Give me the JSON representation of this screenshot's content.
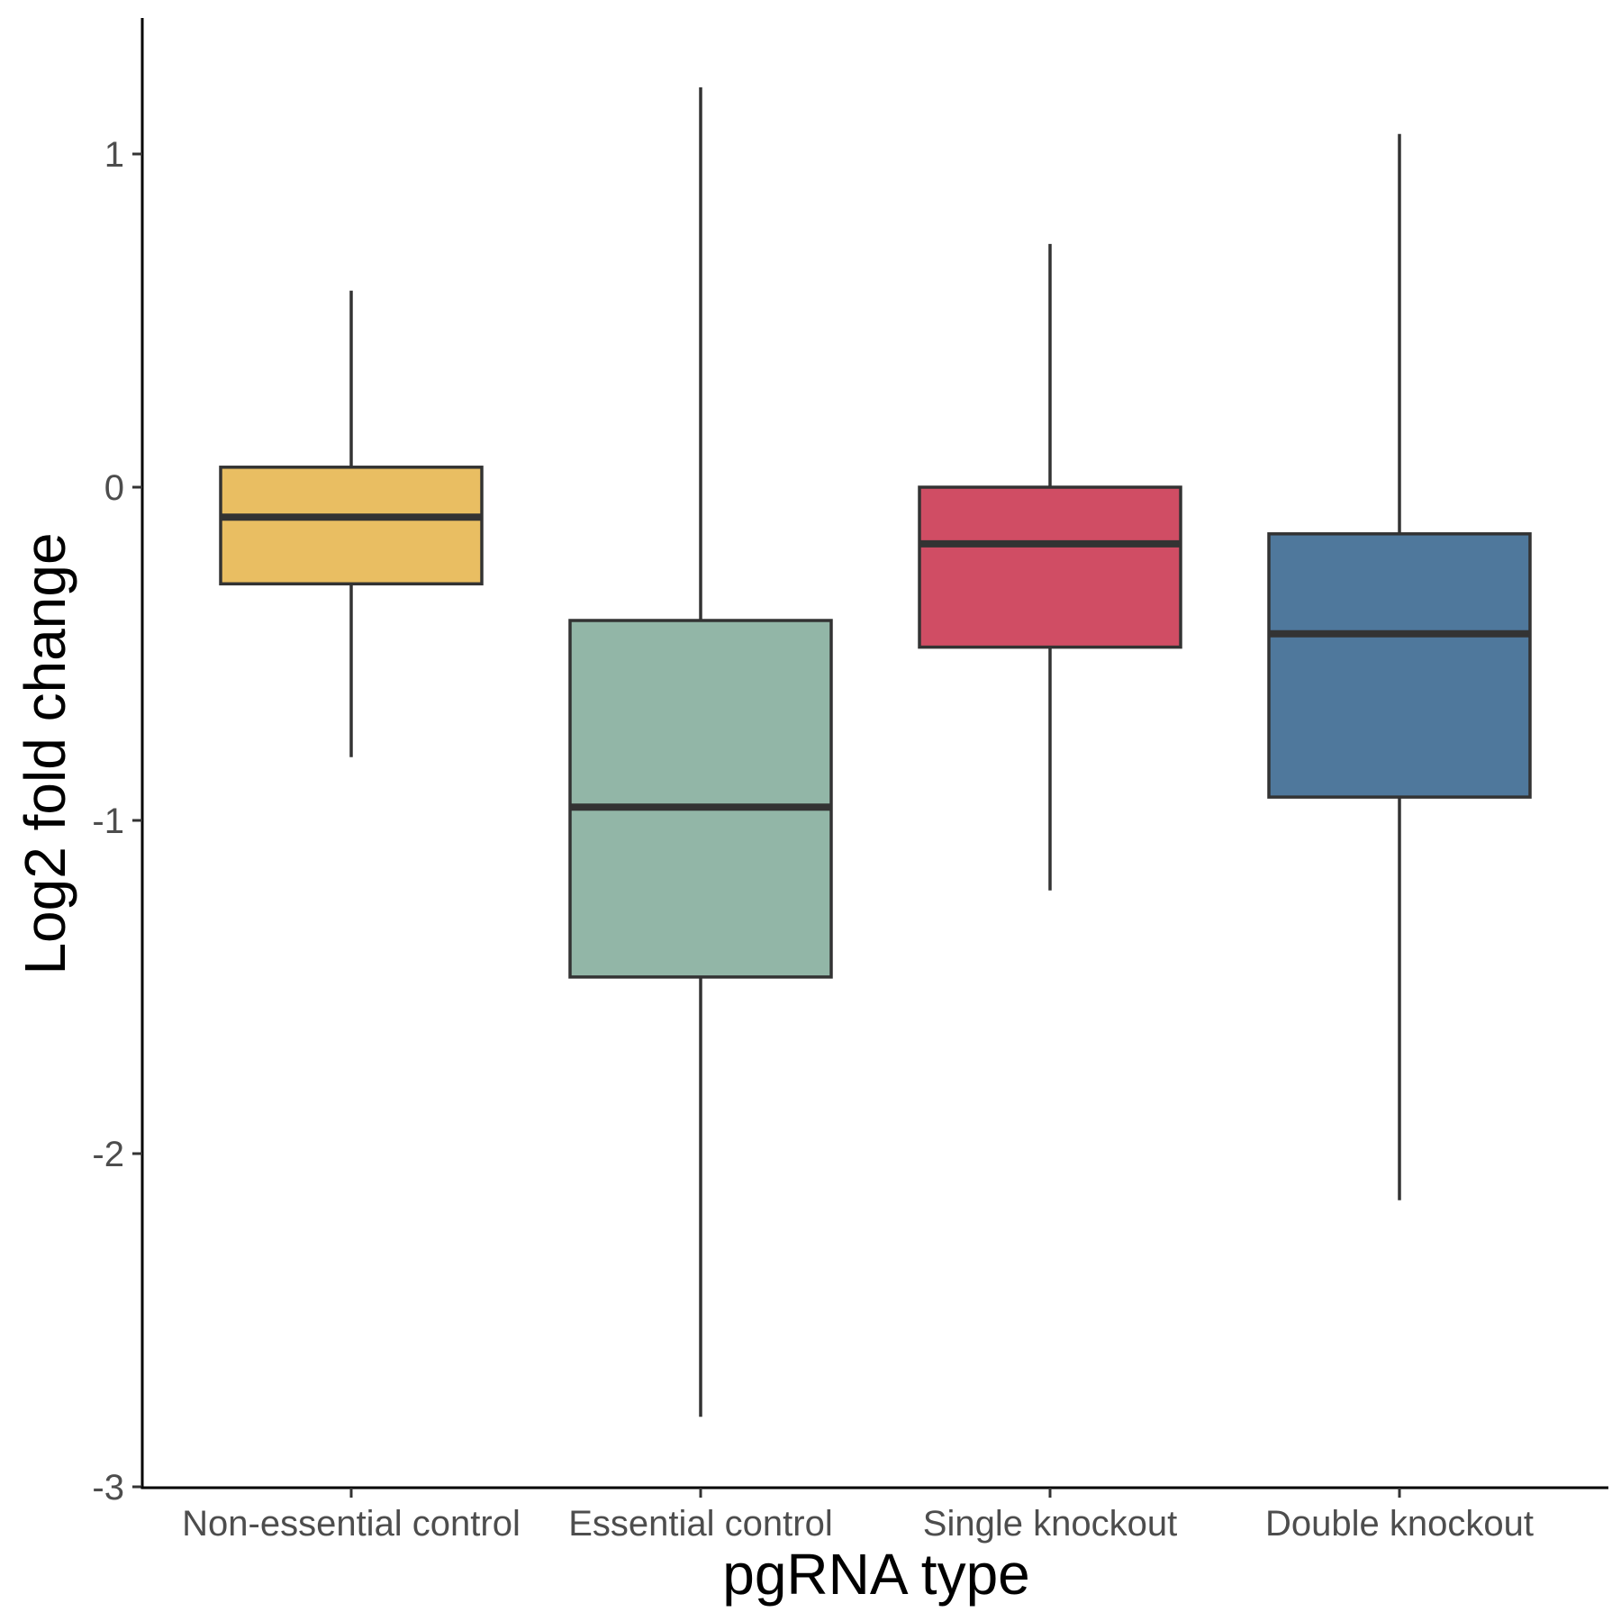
{
  "chart_data": {
    "type": "box",
    "title": "",
    "xlabel": "pgRNA type",
    "ylabel": "Log2 fold change",
    "ylim": [
      -3,
      1.4
    ],
    "yticks": [
      -3,
      -2,
      -1,
      0,
      1
    ],
    "ytick_labels": [
      "-3",
      "-2",
      "-1",
      "0",
      "1"
    ],
    "categories": [
      "Non-essential control",
      "Essential control",
      "Single knockout",
      "Double knockout"
    ],
    "boxes": [
      {
        "category": "Non-essential control",
        "whisker_low": -0.81,
        "q1": -0.29,
        "median": -0.09,
        "q3": 0.06,
        "whisker_high": 0.59,
        "color": "#E9BE62"
      },
      {
        "category": "Essential control",
        "whisker_low": -2.79,
        "q1": -1.47,
        "median": -0.96,
        "q3": -0.4,
        "whisker_high": 1.2,
        "color": "#92B6A7"
      },
      {
        "category": "Single knockout",
        "whisker_low": -1.21,
        "q1": -0.48,
        "median": -0.17,
        "q3": 0.0,
        "whisker_high": 0.73,
        "color": "#D04D64"
      },
      {
        "category": "Double knockout",
        "whisker_low": -2.14,
        "q1": -0.93,
        "median": -0.44,
        "q3": -0.14,
        "whisker_high": 1.06,
        "color": "#4F789C"
      }
    ],
    "outline_color": "#333333",
    "grid": false,
    "legend": "none"
  }
}
